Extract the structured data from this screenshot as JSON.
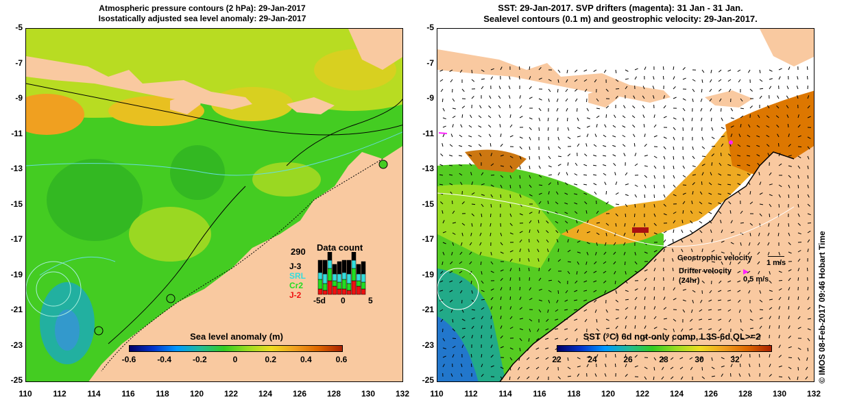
{
  "left": {
    "title_line1": "Atmospheric pressure contours (2 hPa): 29-Jan-2017",
    "title_line2": "Isostatically adjusted sea level anomaly: 29-Jan-2017",
    "colorbar_title": "Sea level anomaly (m)",
    "colorbar_ticks": [
      "-0.6",
      "-0.4",
      "-0.2",
      "0",
      "0.2",
      "0.4",
      "0.6"
    ],
    "data_count": {
      "max_label": "290",
      "title": "Data count",
      "missions": [
        {
          "name": "J-3",
          "color": "#000000"
        },
        {
          "name": "SRL",
          "color": "#33dddd"
        },
        {
          "name": "Cr2",
          "color": "#22dd22"
        },
        {
          "name": "J-2",
          "color": "#ee1111"
        }
      ],
      "x_ticks": [
        "-5d",
        "0",
        "5"
      ]
    }
  },
  "right": {
    "title_line1": "SST: 29-Jan-2017. SVP drifters (magenta): 31 Jan - 31 Jan.",
    "title_line2": "Sealevel contours (0.1 m) and geostrophic velocity: 29-Jan-2017.",
    "colorbar_title": "SST (°C) 6d ngt-only comp, L3S-6d QL>=2",
    "colorbar_ticks": [
      "22",
      "24",
      "26",
      "28",
      "30",
      "32"
    ],
    "legend": {
      "geostrophic_label": "Geostrophic velocity",
      "geostrophic_scale": "1 m/s",
      "drifter_label": "Drifter velocity",
      "drifter_sub": "(24hr)",
      "drifter_scale": "0.5 m/s"
    },
    "credit": "© IMOS 08-Feb-2017 09:46 Hobart Time"
  },
  "axes": {
    "y_ticks": [
      "-5",
      "-7",
      "-9",
      "-11",
      "-13",
      "-15",
      "-17",
      "-19",
      "-21",
      "-23",
      "-25"
    ],
    "x_ticks": [
      "110",
      "112",
      "114",
      "116",
      "118",
      "120",
      "122",
      "124",
      "126",
      "128",
      "130",
      "132"
    ]
  },
  "colors": {
    "land": "#f9c9a0",
    "ocean_green": "#44cc22",
    "sla_yellow": "#c8e020",
    "sla_orange": "#f0a020"
  }
}
